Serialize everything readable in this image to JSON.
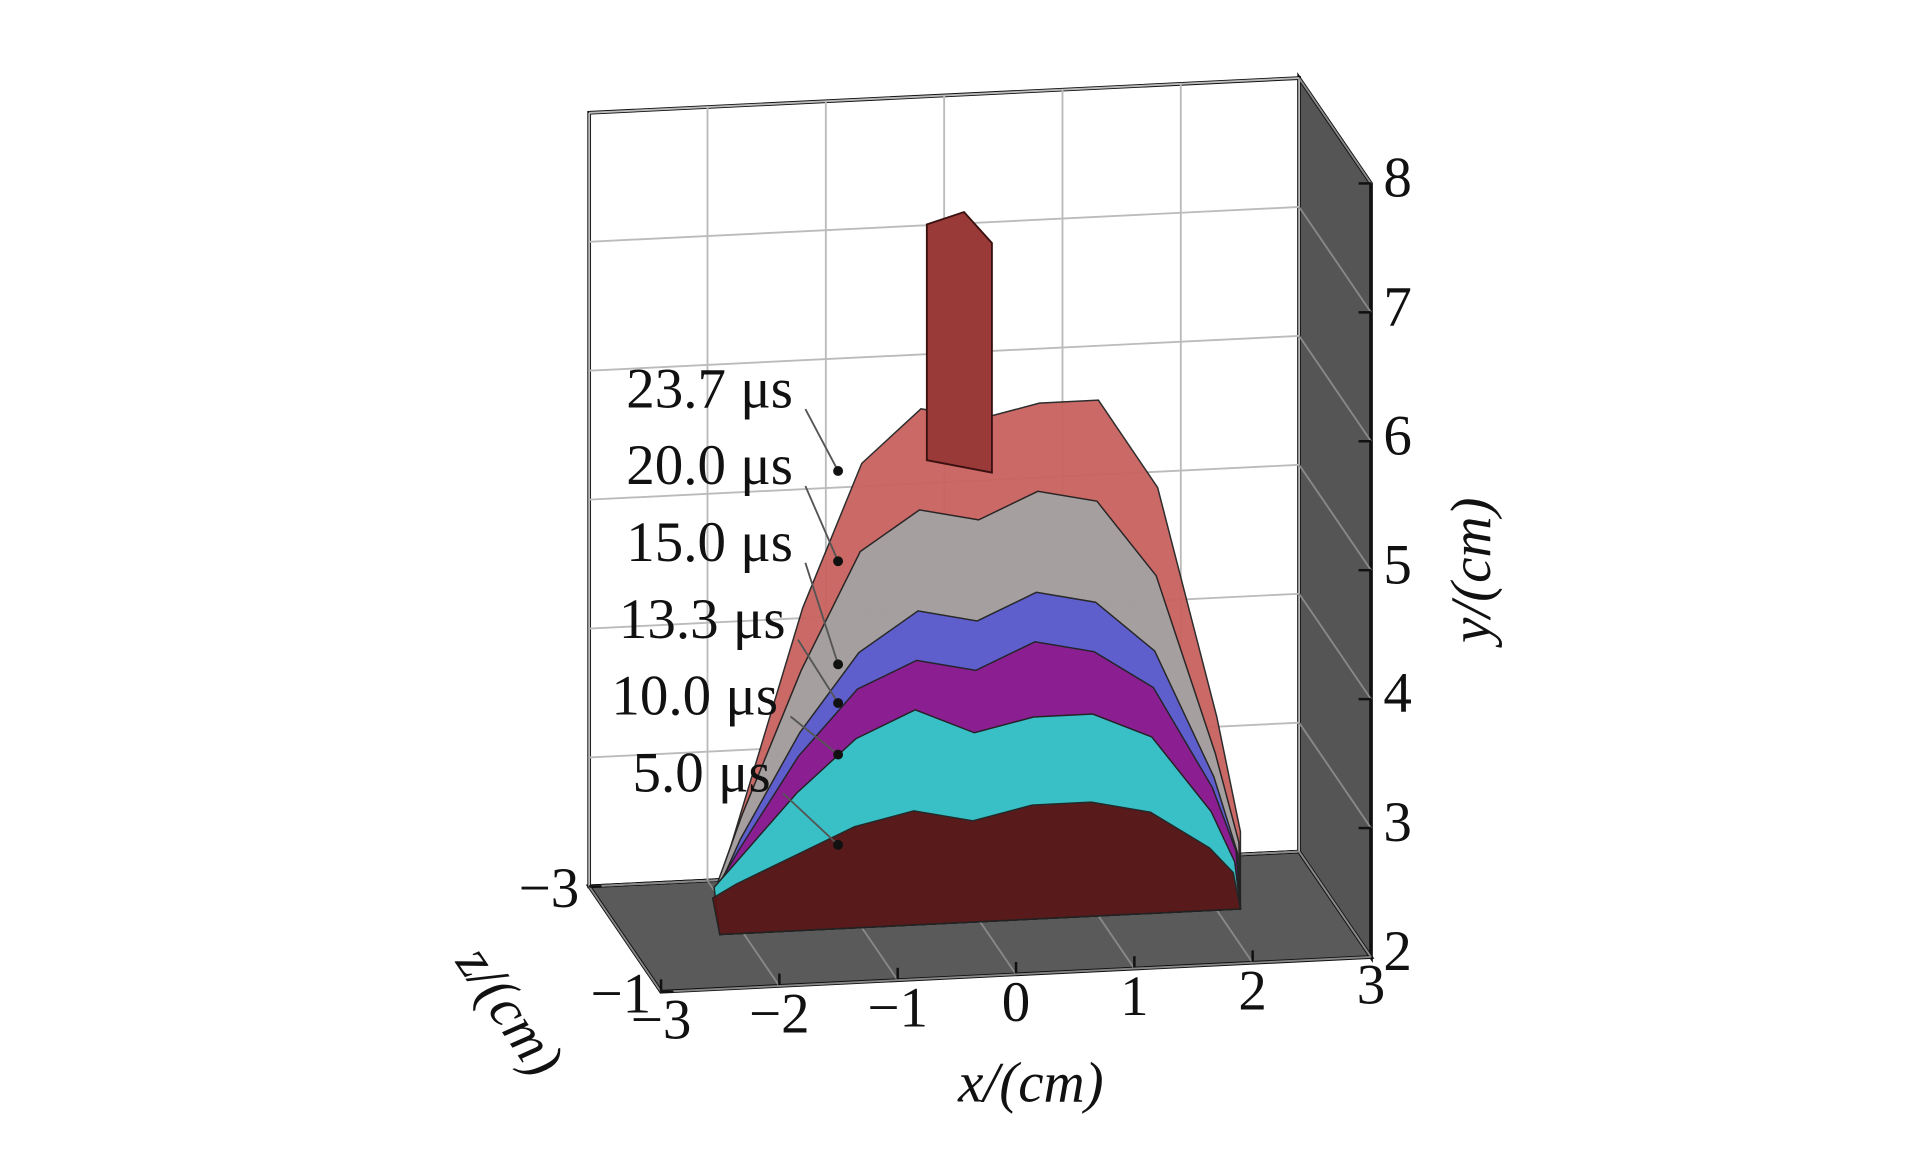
{
  "chart_data": {
    "type": "surface3d",
    "x_label": "x/(cm)",
    "y_label": "y/(cm)",
    "z_label": "z/(cm)",
    "xlim": [
      -3,
      3
    ],
    "ylim": [
      2,
      8
    ],
    "zlim": [
      -3,
      -1
    ],
    "xticks": [
      {
        "value": -3,
        "label": "−3"
      },
      {
        "value": -2,
        "label": "−2"
      },
      {
        "value": -1,
        "label": "−1"
      },
      0,
      1,
      2,
      3
    ],
    "yticks": [
      2,
      3,
      4,
      5,
      6,
      7,
      8
    ],
    "zticks": [
      {
        "value": -3,
        "label": "−3"
      },
      {
        "value": -1,
        "label": "−1"
      }
    ],
    "grid": true,
    "x": [
      -2.2,
      -2,
      -1.5,
      -1,
      -0.5,
      0,
      0.5,
      1,
      1.5,
      2,
      2.2
    ],
    "series": [
      {
        "name": "23.7 μs",
        "color": "#c9625e",
        "values": [
          2.4,
          3.0,
          4.5,
          5.6,
          6.0,
          5.9,
          6.0,
          6.0,
          5.3,
          3.5,
          2.6
        ]
      },
      {
        "name": "20.0 μs",
        "color": "#a3a3a3",
        "values": [
          2.4,
          2.9,
          4.0,
          4.9,
          5.2,
          5.1,
          5.3,
          5.2,
          4.6,
          3.2,
          2.5
        ]
      },
      {
        "name": "15.0 μs",
        "color": "#5b5bd0",
        "values": [
          2.3,
          2.7,
          3.5,
          4.1,
          4.4,
          4.3,
          4.5,
          4.4,
          4.0,
          3.0,
          2.4
        ]
      },
      {
        "name": "13.3 μs",
        "color": "#8e1c8e",
        "values": [
          2.3,
          2.6,
          3.3,
          3.8,
          4.0,
          3.9,
          4.1,
          4.0,
          3.7,
          2.9,
          2.4
        ]
      },
      {
        "name": "10.0 μs",
        "color": "#34c9c9",
        "values": [
          2.3,
          2.5,
          3.0,
          3.4,
          3.6,
          3.4,
          3.5,
          3.5,
          3.3,
          2.7,
          2.3
        ]
      },
      {
        "name": "5.0 μs",
        "color": "#5a1212",
        "values": [
          2.2,
          2.3,
          2.5,
          2.7,
          2.8,
          2.7,
          2.8,
          2.8,
          2.7,
          2.4,
          2.2
        ]
      }
    ]
  }
}
